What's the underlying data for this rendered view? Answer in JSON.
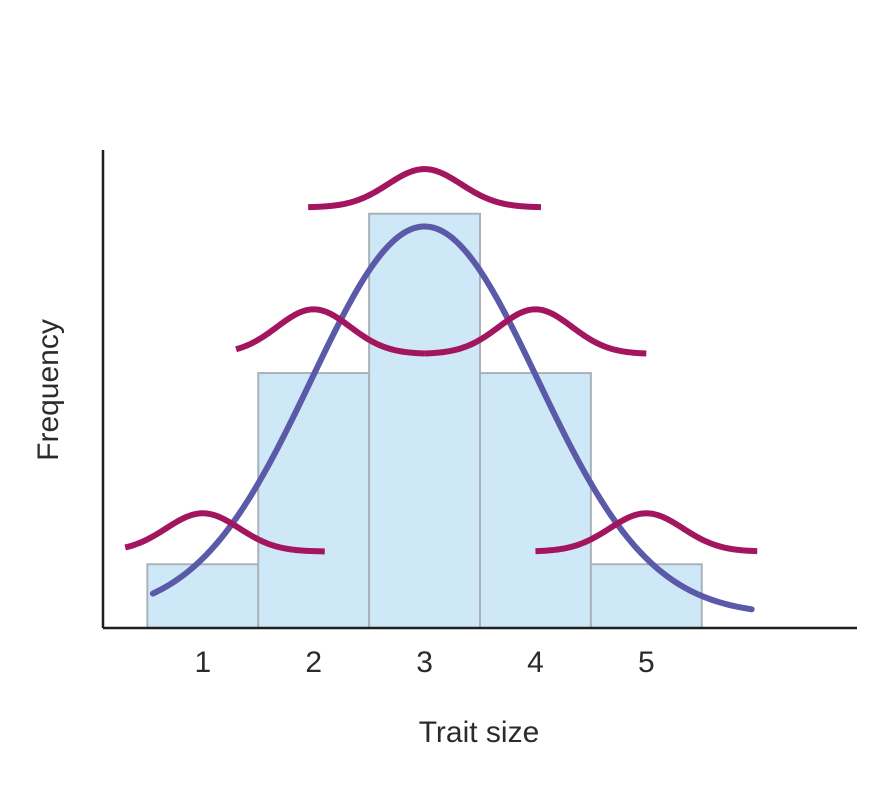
{
  "chart_data": {
    "type": "bar",
    "title": "",
    "xlabel": "Trait size",
    "ylabel": "Frequency",
    "categories": [
      "1",
      "2",
      "3",
      "4",
      "5"
    ],
    "values": [
      1,
      4,
      6.5,
      4,
      1
    ],
    "xlim": [
      0.1,
      6.9
    ],
    "ylim": [
      0,
      7.5
    ],
    "grid": false,
    "colors": {
      "bar_fill": "#cfe8f8",
      "bar_stroke": "#a9b2b8",
      "overall_curve": "#5a5aa8",
      "component_curve": "#a3165f",
      "axis": "#1f1f1f"
    },
    "overall_curve": {
      "mean": 3,
      "sd": 1.02,
      "peak": 6.3,
      "baseline": 0.2
    },
    "component_curves": [
      {
        "center": 1,
        "x_range": [
          0.3,
          2.1
        ],
        "baseline": 1.2,
        "peak": 1.8
      },
      {
        "center": 2,
        "x_range": [
          1.3,
          3.0
        ],
        "baseline": 4.3,
        "peak": 5.0
      },
      {
        "center": 3,
        "x_range": [
          1.95,
          4.05
        ],
        "baseline": 6.6,
        "peak": 7.2
      },
      {
        "center": 4,
        "x_range": [
          3.0,
          5.0
        ],
        "baseline": 4.3,
        "peak": 5.0
      },
      {
        "center": 5,
        "x_range": [
          4.0,
          6.0
        ],
        "baseline": 1.2,
        "peak": 1.8
      }
    ]
  }
}
